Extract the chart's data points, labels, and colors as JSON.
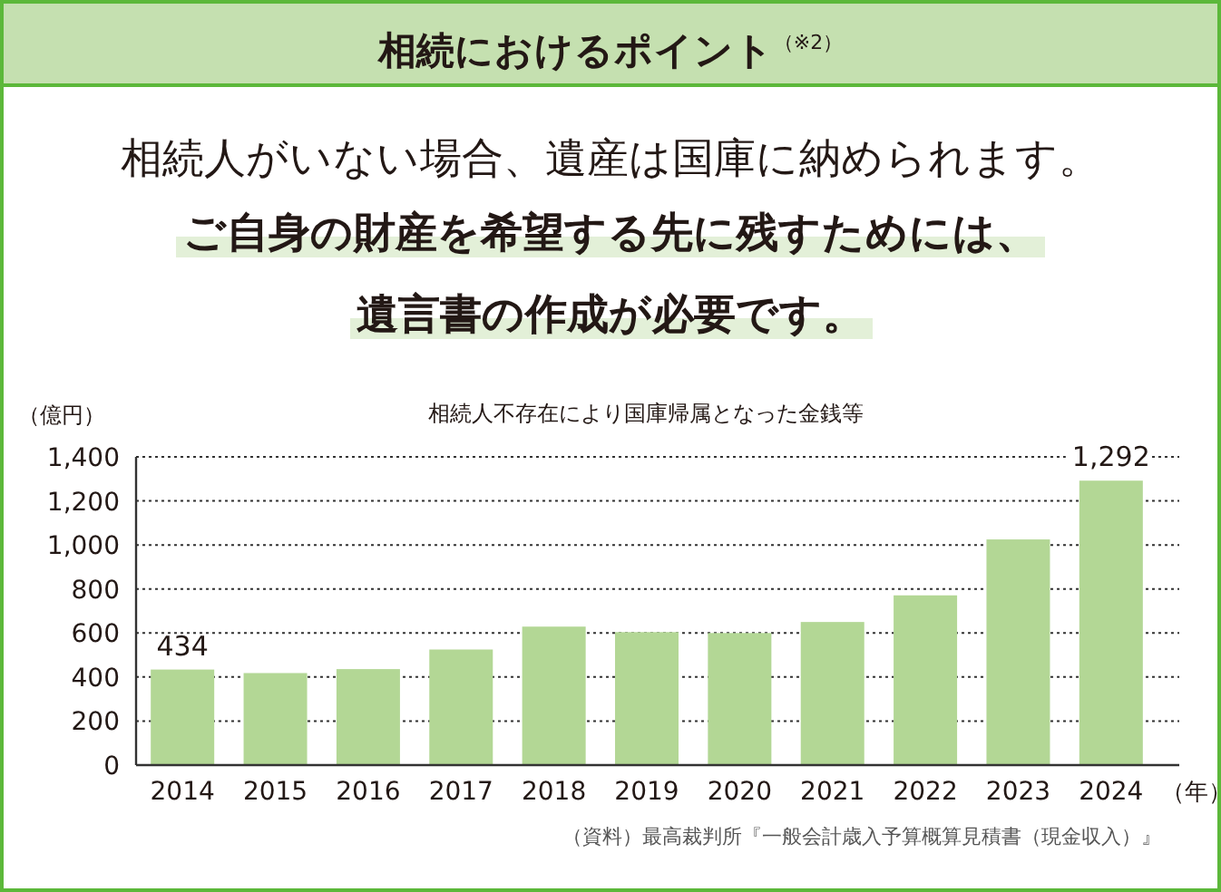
{
  "chart_data": {
    "type": "bar",
    "title": "相続人不存在により国庫帰属となった金銭等",
    "categories": [
      "2014",
      "2015",
      "2016",
      "2017",
      "2018",
      "2019",
      "2020",
      "2021",
      "2022",
      "2023",
      "2024"
    ],
    "values": [
      434,
      418,
      436,
      525,
      629,
      604,
      600,
      650,
      771,
      1025,
      1292
    ],
    "value_labels": [
      "434",
      null,
      null,
      null,
      null,
      null,
      null,
      null,
      null,
      null,
      "1,292"
    ],
    "color": "#b3d795",
    "ylabel": "（億円）",
    "xlabel": "（年）",
    "ylim": [
      0,
      1400
    ],
    "yticks": [
      0,
      200,
      400,
      600,
      800,
      {
        "value": 1000,
        "label": "1,000"
      },
      {
        "value": 1200,
        "label": "1,200"
      },
      {
        "value": 1400,
        "label": "1,400"
      }
    ],
    "grid": "y",
    "annotations": [
      "相続におけるポイント$^{（※2）}$",
      "相続人がいない場合、遺産は国庫に納められます。",
      "ご自身の財産を希望する先に残すためには、",
      "遺言書の作成が必要です。",
      "（資料）最高裁判所『一般会計歳入予算概算見積書（現金収入）』"
    ]
  }
}
